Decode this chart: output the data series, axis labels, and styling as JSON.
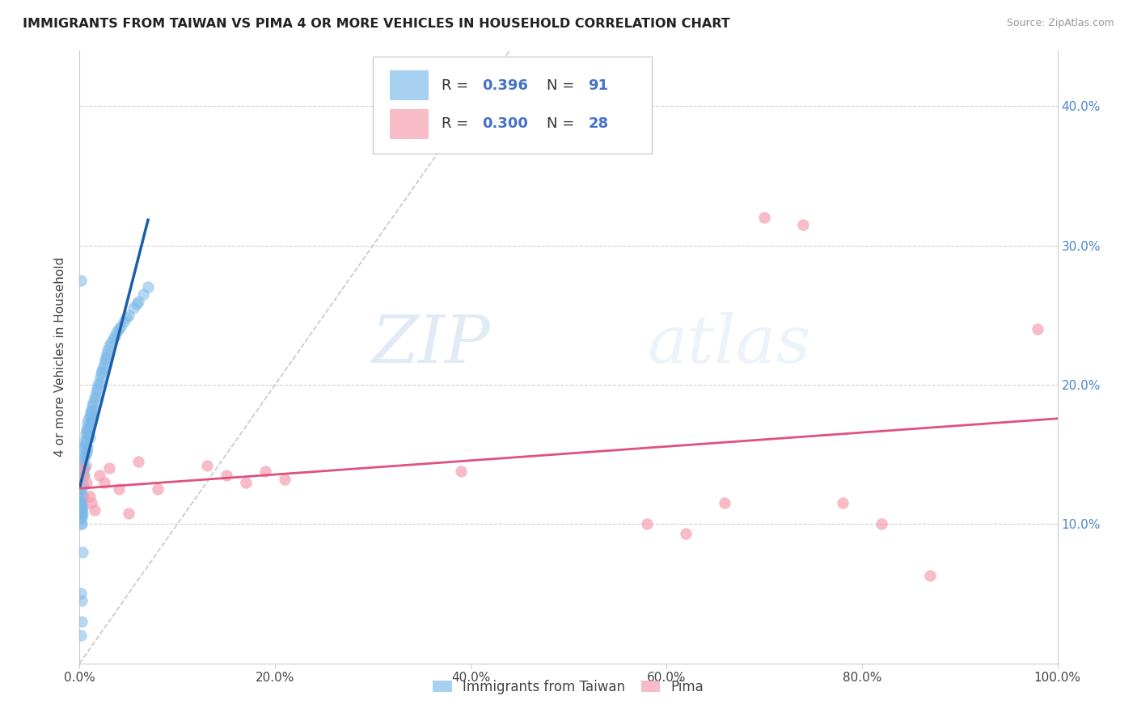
{
  "title": "IMMIGRANTS FROM TAIWAN VS PIMA 4 OR MORE VEHICLES IN HOUSEHOLD CORRELATION CHART",
  "source": "Source: ZipAtlas.com",
  "ylabel": "4 or more Vehicles in Household",
  "xlim": [
    0.0,
    1.0
  ],
  "ylim": [
    0.0,
    0.44
  ],
  "xticks": [
    0.0,
    0.2,
    0.4,
    0.6,
    0.8,
    1.0
  ],
  "xticklabels": [
    "0.0%",
    "20.0%",
    "40.0%",
    "60.0%",
    "80.0%",
    "100.0%"
  ],
  "yticks": [
    0.0,
    0.1,
    0.2,
    0.3,
    0.4
  ],
  "yticklabels_right": [
    "",
    "10.0%",
    "20.0%",
    "30.0%",
    "40.0%"
  ],
  "taiwan_color": "#7ab8e8",
  "pima_color": "#f4a0b0",
  "taiwan_R": "0.396",
  "taiwan_N": "91",
  "pima_R": "0.300",
  "pima_N": "28",
  "taiwan_line_color": "#1a5fa8",
  "pima_line_color": "#e05080",
  "diagonal_color": "#bbbbbb",
  "watermark_zip": "ZIP",
  "watermark_atlas": "atlas",
  "legend_label_taiwan": "Immigrants from Taiwan",
  "legend_label_pima": "Pima",
  "stat_color": "#4472c4",
  "taiwan_x": [
    0.001,
    0.001,
    0.001,
    0.001,
    0.001,
    0.001,
    0.002,
    0.002,
    0.002,
    0.002,
    0.002,
    0.002,
    0.002,
    0.003,
    0.003,
    0.003,
    0.003,
    0.003,
    0.003,
    0.003,
    0.003,
    0.004,
    0.004,
    0.004,
    0.004,
    0.004,
    0.004,
    0.005,
    0.005,
    0.005,
    0.005,
    0.005,
    0.006,
    0.006,
    0.006,
    0.006,
    0.007,
    0.007,
    0.007,
    0.008,
    0.008,
    0.008,
    0.009,
    0.009,
    0.01,
    0.01,
    0.01,
    0.011,
    0.011,
    0.012,
    0.012,
    0.013,
    0.013,
    0.014,
    0.015,
    0.015,
    0.016,
    0.017,
    0.018,
    0.019,
    0.02,
    0.021,
    0.022,
    0.023,
    0.024,
    0.025,
    0.026,
    0.027,
    0.028,
    0.029,
    0.03,
    0.032,
    0.034,
    0.036,
    0.038,
    0.04,
    0.042,
    0.045,
    0.048,
    0.05,
    0.055,
    0.058,
    0.06,
    0.065,
    0.07,
    0.001,
    0.002,
    0.001,
    0.003,
    0.002,
    0.001
  ],
  "taiwan_y": [
    0.12,
    0.115,
    0.11,
    0.108,
    0.105,
    0.1,
    0.125,
    0.12,
    0.115,
    0.112,
    0.108,
    0.105,
    0.1,
    0.145,
    0.14,
    0.135,
    0.128,
    0.12,
    0.115,
    0.112,
    0.108,
    0.155,
    0.148,
    0.14,
    0.135,
    0.128,
    0.12,
    0.16,
    0.155,
    0.148,
    0.14,
    0.135,
    0.165,
    0.158,
    0.15,
    0.142,
    0.168,
    0.16,
    0.152,
    0.172,
    0.165,
    0.155,
    0.175,
    0.168,
    0.178,
    0.17,
    0.162,
    0.18,
    0.172,
    0.182,
    0.175,
    0.185,
    0.178,
    0.187,
    0.19,
    0.182,
    0.192,
    0.195,
    0.197,
    0.2,
    0.202,
    0.205,
    0.208,
    0.21,
    0.212,
    0.215,
    0.218,
    0.22,
    0.222,
    0.225,
    0.228,
    0.23,
    0.233,
    0.235,
    0.238,
    0.24,
    0.242,
    0.245,
    0.248,
    0.25,
    0.255,
    0.258,
    0.26,
    0.265,
    0.27,
    0.05,
    0.045,
    0.275,
    0.08,
    0.03,
    0.02
  ],
  "pima_x": [
    0.003,
    0.005,
    0.007,
    0.01,
    0.012,
    0.015,
    0.02,
    0.025,
    0.03,
    0.04,
    0.05,
    0.06,
    0.08,
    0.13,
    0.15,
    0.17,
    0.19,
    0.21,
    0.39,
    0.58,
    0.62,
    0.66,
    0.7,
    0.74,
    0.78,
    0.82,
    0.87,
    0.98
  ],
  "pima_y": [
    0.135,
    0.14,
    0.13,
    0.12,
    0.115,
    0.11,
    0.135,
    0.13,
    0.14,
    0.125,
    0.108,
    0.145,
    0.125,
    0.142,
    0.135,
    0.13,
    0.138,
    0.132,
    0.138,
    0.1,
    0.093,
    0.115,
    0.32,
    0.315,
    0.115,
    0.1,
    0.063,
    0.24
  ]
}
